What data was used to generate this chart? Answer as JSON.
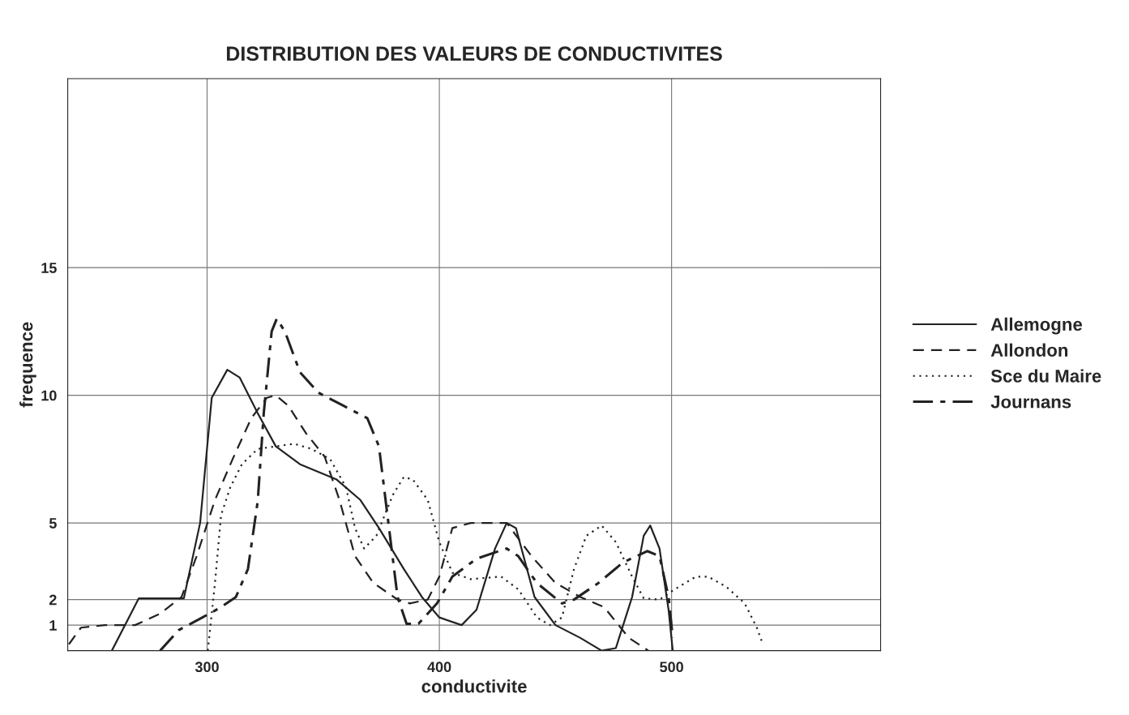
{
  "chart_data": {
    "type": "line",
    "title": "DISTRIBUTION DES VALEURS DE CONDUCTIVITES",
    "xlabel": "conductivite",
    "ylabel": "frequence",
    "xlim": [
      240,
      590
    ],
    "xticks": [
      300,
      400,
      500
    ],
    "ylim": [
      0,
      22.4
    ],
    "yticks": [
      1,
      2,
      5,
      10,
      15
    ],
    "grid": true,
    "legend": "right",
    "marker": "none",
    "series": [
      {
        "name": "Allemogne",
        "color": "#222222",
        "line_style": "solid",
        "x": [
          259,
          270.6,
          290,
          297,
          302,
          308.7,
          314,
          321.8,
          329.6,
          340,
          355.8,
          366,
          374,
          384.7,
          392.5,
          400,
          409.6,
          416,
          424,
          429,
          433,
          441,
          450,
          460.7,
          469.9,
          476,
          483,
          488,
          490.8,
          494.8,
          498.7,
          500.5
        ],
        "values": [
          0,
          2.05,
          2.05,
          5,
          9.9,
          11,
          10.7,
          9.3,
          8,
          7.3,
          6.7,
          5.9,
          4.8,
          3.2,
          2.1,
          1.3,
          1.0,
          1.6,
          4,
          5,
          4.8,
          2.1,
          1.0,
          0.5,
          0,
          0.1,
          2.1,
          4.5,
          4.9,
          4,
          1.6,
          0
        ]
      },
      {
        "name": "Allondon",
        "color": "#222222",
        "line_style": "dashed",
        "x": [
          240.5,
          245.7,
          256,
          269,
          279.8,
          289,
          295.5,
          303.4,
          311,
          319,
          325.7,
          329.6,
          334.9,
          342.7,
          350.6,
          357,
          363.7,
          371.6,
          382,
          387.3,
          395,
          400,
          405.6,
          413.5,
          429,
          439.7,
          450,
          460.7,
          471,
          481.6,
          490
        ],
        "values": [
          0.25,
          0.9,
          1.0,
          1.0,
          1.45,
          2.1,
          3.7,
          5.9,
          7.5,
          9.1,
          9.9,
          10,
          9.6,
          8.5,
          7.6,
          5.9,
          3.7,
          2.65,
          2.0,
          1.85,
          2.0,
          2.9,
          4.8,
          5,
          5,
          3.7,
          2.65,
          2.1,
          1.7,
          0.5,
          0
        ]
      },
      {
        "name": "Sce du Maire",
        "color": "#222222",
        "line_style": "dotted",
        "x": [
          300.3,
          303.4,
          306,
          310,
          315,
          321.8,
          329.6,
          337.5,
          345,
          353,
          359.8,
          363.7,
          367.6,
          372.9,
          380,
          384.7,
          388.6,
          395,
          400,
          405.6,
          413.5,
          426.6,
          434,
          442,
          447.6,
          452.8,
          458,
          463.3,
          469.9,
          476,
          483,
          488,
          494.8,
          501.3,
          510.5,
          515.7,
          523.6,
          531.5,
          536.7,
          539.3
        ],
        "values": [
          0,
          2.65,
          5.3,
          6.4,
          7.3,
          7.9,
          8,
          8.1,
          7.9,
          7.5,
          6.4,
          4.8,
          4.0,
          4.5,
          6.1,
          6.8,
          6.7,
          5.9,
          4.25,
          3.05,
          2.8,
          2.9,
          2.4,
          1.3,
          1.0,
          1.3,
          3.2,
          4.5,
          4.9,
          4.25,
          2.9,
          2.05,
          2.0,
          2.4,
          2.9,
          2.9,
          2.5,
          1.85,
          0.9,
          0.25
        ]
      },
      {
        "name": "Journans",
        "color": "#222222",
        "line_style": "dashdot",
        "x": [
          279.8,
          287.7,
          298,
          305.9,
          312.4,
          317.6,
          321.8,
          324.4,
          327.8,
          330,
          333.5,
          340,
          348,
          358.5,
          369,
          374,
          378,
          382,
          385.9,
          391,
          399,
          405.6,
          416,
          429,
          434,
          442,
          452.8,
          458,
          468.5,
          479,
          489.5,
          494.8,
          498.7,
          500.5
        ],
        "values": [
          0,
          0.8,
          1.3,
          1.7,
          2.1,
          3.2,
          5.85,
          9.3,
          12.5,
          13.0,
          12.5,
          10.9,
          10.1,
          9.6,
          9.1,
          8.0,
          5.05,
          2.1,
          1.05,
          1.05,
          1.85,
          2.9,
          3.6,
          4.0,
          3.7,
          2.65,
          1.85,
          2.0,
          2.65,
          3.45,
          3.9,
          3.7,
          2.1,
          0.5
        ]
      }
    ]
  }
}
